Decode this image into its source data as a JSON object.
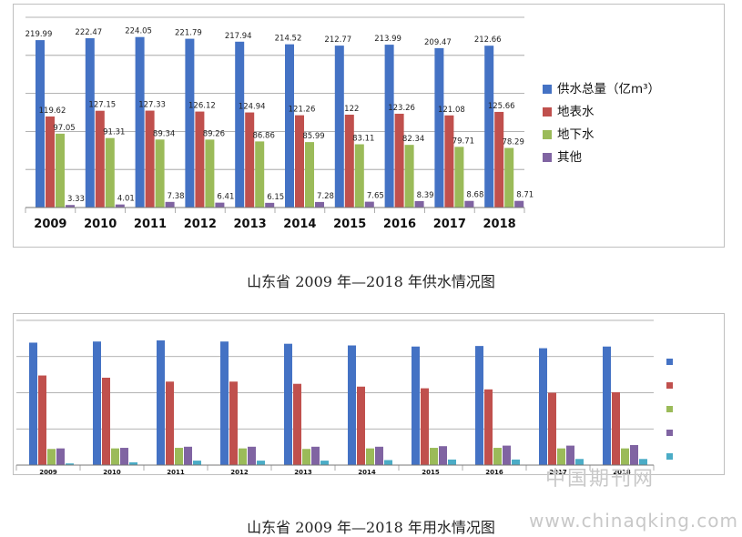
{
  "colors": {
    "supply": "#4472c4",
    "surface": "#c0504d",
    "groundwater": "#9bbb59",
    "other": "#8064a2",
    "fifth": "#4bacc6",
    "grid": "#9a9a9a",
    "caption": "#222222"
  },
  "chart_data": [
    {
      "type": "bar",
      "categories": [
        "2009",
        "2010",
        "2011",
        "2012",
        "2013",
        "2014",
        "2015",
        "2016",
        "2017",
        "2018"
      ],
      "series": [
        {
          "name": "供水总量（亿m³）",
          "values": [
            219.99,
            222.47,
            224.05,
            221.79,
            217.94,
            214.52,
            212.77,
            213.99,
            209.47,
            212.66
          ]
        },
        {
          "name": "地表水",
          "values": [
            119.62,
            127.15,
            127.33,
            126.12,
            124.94,
            121.26,
            122,
            123.26,
            121.08,
            125.66
          ]
        },
        {
          "name": "地下水",
          "values": [
            97.05,
            91.31,
            89.34,
            89.26,
            86.86,
            85.99,
            83.11,
            82.34,
            79.71,
            78.29
          ]
        },
        {
          "name": "其他",
          "values": [
            3.33,
            4.01,
            7.38,
            6.41,
            6.15,
            7.28,
            7.65,
            8.39,
            8.68,
            8.71
          ]
        }
      ],
      "value_labels": [
        [
          "219.99",
          "222.47",
          "224.05",
          "221.79",
          "217.94",
          "214.52",
          "212.77",
          "213.99",
          "209.47",
          "212.66"
        ],
        [
          "119.62",
          "127.15",
          "127.33",
          "126.12",
          "124.94",
          "121.26",
          "122",
          "123.26",
          "121.08",
          "125.66"
        ],
        [
          "97.05",
          "91.31",
          "89.34",
          "89.26",
          "86.86",
          "85.99",
          "83.11",
          "82.34",
          "79.71",
          "78.29"
        ],
        [
          "3.33",
          "4.01",
          "7.38",
          "6.41",
          "6.15",
          "7.28",
          "7.65",
          "8.39",
          "8.68",
          "8.71"
        ]
      ],
      "ylim": [
        0,
        250
      ],
      "grid": true,
      "legend_position": "right",
      "caption": "山东省 2009 年—2018 年供水情况图"
    },
    {
      "type": "bar",
      "categories": [
        "2009",
        "2010",
        "2011",
        "2012",
        "2013",
        "2014",
        "2015",
        "2016",
        "2017",
        "2018"
      ],
      "series": [
        {
          "name": "",
          "values": [
            220,
            222,
            224,
            222,
            218,
            215,
            213,
            214,
            210,
            213
          ]
        },
        {
          "name": "",
          "values": [
            161,
            157,
            150,
            150,
            146,
            141,
            138,
            136,
            130,
            131
          ]
        },
        {
          "name": "",
          "values": [
            29,
            30,
            31,
            30,
            29,
            30,
            31,
            31,
            30,
            30
          ]
        },
        {
          "name": "",
          "values": [
            30,
            31,
            33,
            33,
            33,
            33,
            34,
            35,
            35,
            36
          ]
        },
        {
          "name": "",
          "values": [
            3,
            5,
            8,
            8,
            8,
            9,
            10,
            10,
            11,
            11
          ]
        }
      ],
      "ylim": [
        0,
        260
      ],
      "grid": true,
      "legend_position": "right",
      "caption": "山东省 2009 年—2018 年用水情况图"
    }
  ],
  "watermark": {
    "cn": "中国期刊网",
    "url": "www.chinaqking.com"
  }
}
